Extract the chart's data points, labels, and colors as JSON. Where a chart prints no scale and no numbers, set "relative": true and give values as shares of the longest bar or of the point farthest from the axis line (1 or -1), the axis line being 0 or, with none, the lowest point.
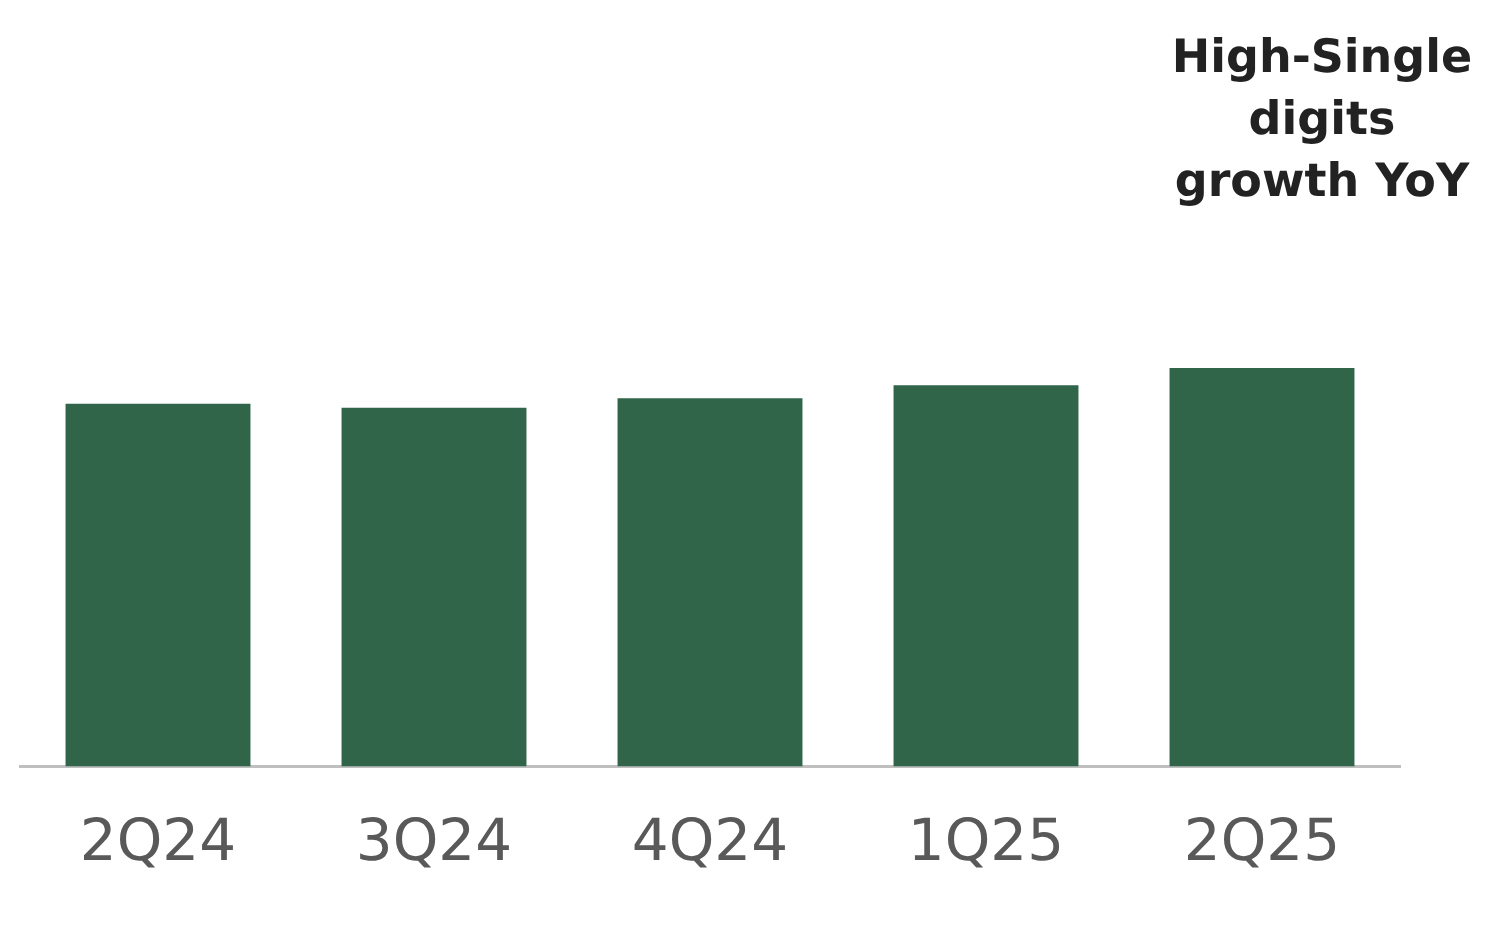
{
  "chart_data": {
    "type": "bar",
    "relative": true,
    "categories": [
      "2Q24",
      "3Q24",
      "4Q24",
      "1Q25",
      "2Q25"
    ],
    "values": [
      0.91,
      0.9,
      0.924,
      0.957,
      1
    ],
    "color": "#31654a",
    "annotations": [
      "High-Single digits growth YoY"
    ],
    "grid": false,
    "legend": false
  }
}
